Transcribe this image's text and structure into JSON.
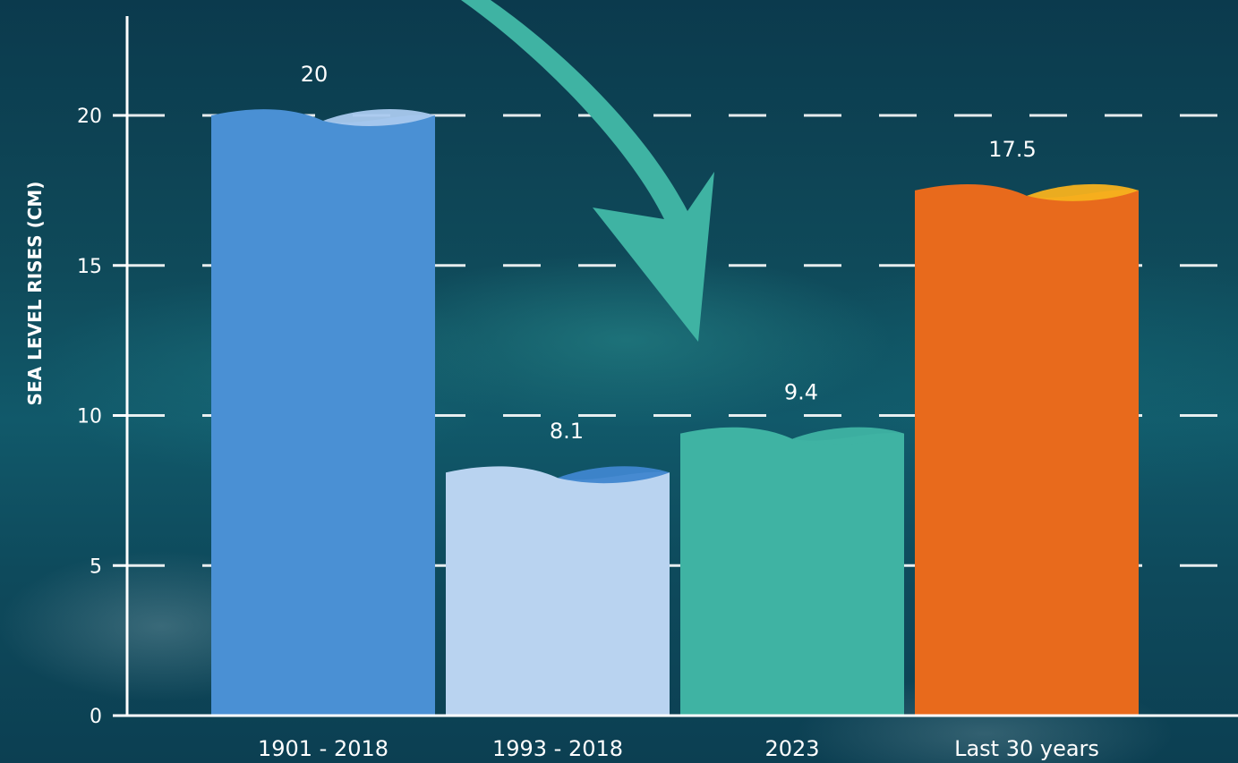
{
  "chart_data": {
    "type": "bar",
    "title": "",
    "xlabel": "",
    "ylabel": "SEA LEVEL RISES (CM)",
    "categories": [
      "1901 - 2018",
      "1993 - 2018",
      "2023",
      "Last 30 years"
    ],
    "values": [
      20,
      8.1,
      9.4,
      17.5
    ],
    "value_labels": [
      "20",
      "8.1",
      "9.4",
      "17.5"
    ],
    "yticks": [
      "0",
      "5",
      "10",
      "15",
      "20"
    ],
    "ylim": [
      0,
      20
    ],
    "grid": "dashed horizontal",
    "annotation": "curved arrow pointing to 2023 bar",
    "colors": {
      "bars": [
        "#4a90d4",
        "#b9d3f0",
        "#3fb3a3",
        "#e86a1c"
      ],
      "bar_caps": [
        "#a9c9ee",
        "#3f86cf",
        "#3fb3a3",
        "#f7b21e"
      ],
      "arrow": "#3fb3a3",
      "axis": "#ffffff"
    }
  }
}
